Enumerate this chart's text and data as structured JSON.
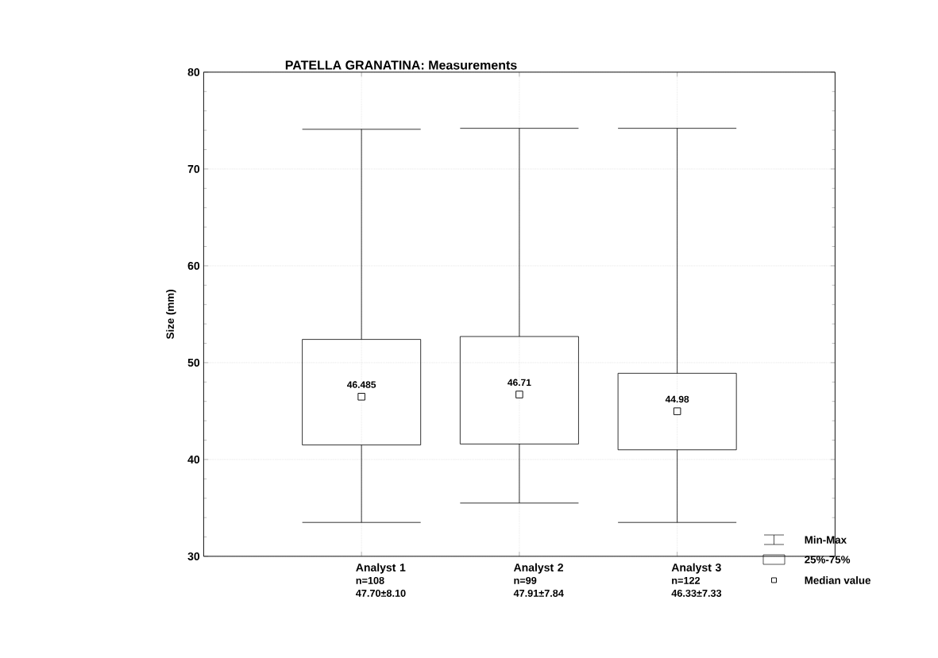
{
  "chart_data": {
    "type": "box",
    "title": "PATELLA GRANATINA: Measurements",
    "ylabel": "Size (mm)",
    "categories": [
      "Analyst 1",
      "Analyst 2",
      "Analyst 3"
    ],
    "boxes": [
      {
        "low": 33.5,
        "q1": 41.5,
        "median": 46.485,
        "q3": 52.4,
        "high": 74.1
      },
      {
        "low": 35.5,
        "q1": 41.6,
        "median": 46.71,
        "q3": 52.7,
        "high": 74.2
      },
      {
        "low": 33.5,
        "q1": 41.0,
        "median": 44.98,
        "q3": 48.9,
        "high": 74.2
      }
    ],
    "ylim": [
      30,
      80
    ],
    "yticks": [
      30,
      40,
      50,
      60,
      70,
      80
    ],
    "grid": true,
    "marker": "square",
    "annotations": [
      "n=108",
      "47.70±8.10",
      "n=99",
      "47.91±7.84",
      "n=122",
      "46.33±7.33",
      "Min-Max",
      "25%-75%",
      "Median value",
      "46.485",
      "46.71",
      "44.98"
    ]
  }
}
